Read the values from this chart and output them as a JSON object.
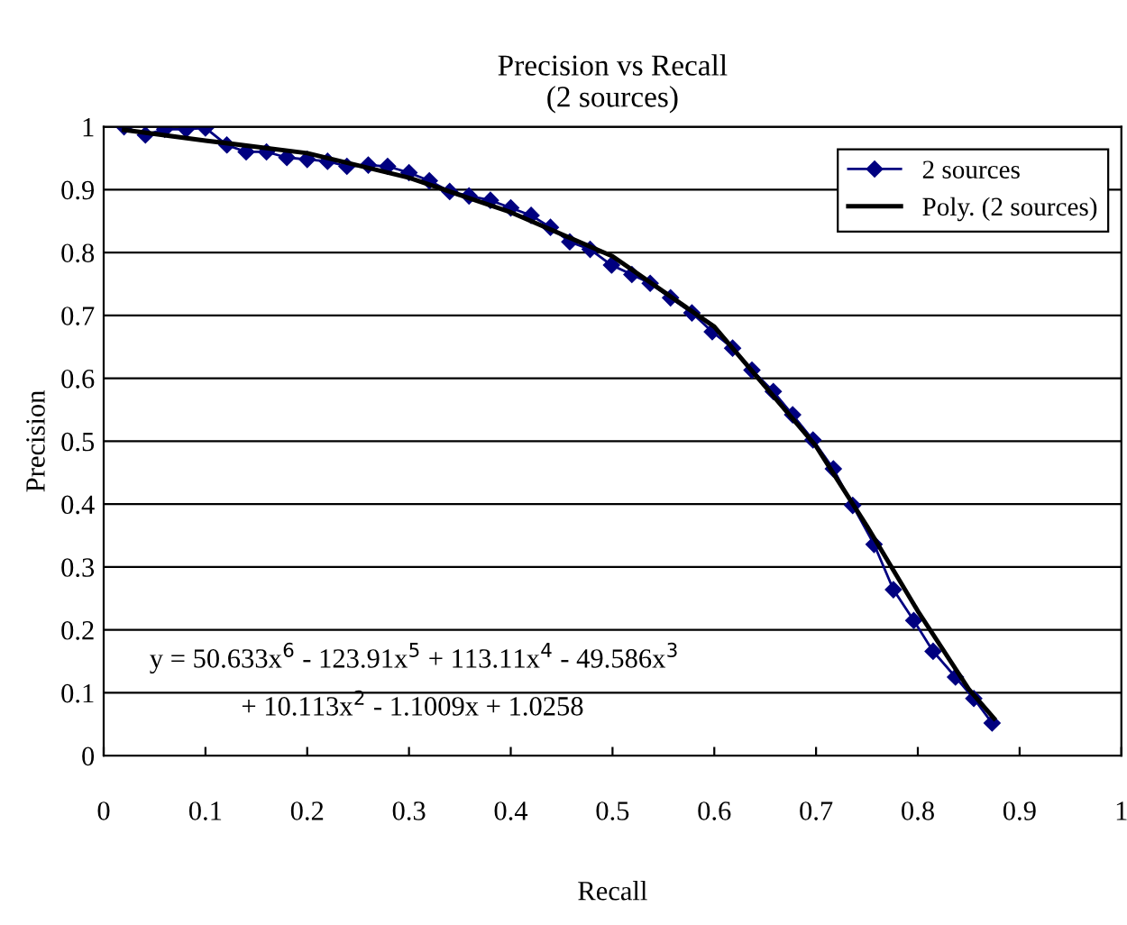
{
  "chart_data": {
    "type": "line",
    "title": "Precision vs Recall\n(2 sources)",
    "xlabel": "Recall",
    "ylabel": "Precision",
    "xlim": [
      0,
      1
    ],
    "ylim": [
      0,
      1
    ],
    "xticks": [
      0,
      0.1,
      0.2,
      0.3,
      0.4,
      0.5,
      0.6,
      0.7,
      0.8,
      0.9,
      1
    ],
    "yticks": [
      0,
      0.1,
      0.2,
      0.3,
      0.4,
      0.5,
      0.6,
      0.7,
      0.8,
      0.9,
      1
    ],
    "grid": "y",
    "legend": "top right",
    "series": [
      {
        "name": "2 sources",
        "color": "#000080",
        "marker": "diamond",
        "x": [
          0.02,
          0.041,
          0.06,
          0.081,
          0.1,
          0.121,
          0.14,
          0.16,
          0.18,
          0.2,
          0.22,
          0.239,
          0.26,
          0.279,
          0.3,
          0.32,
          0.34,
          0.359,
          0.38,
          0.4,
          0.42,
          0.439,
          0.458,
          0.478,
          0.499,
          0.519,
          0.537,
          0.557,
          0.578,
          0.598,
          0.618,
          0.637,
          0.658,
          0.677,
          0.697,
          0.717,
          0.736,
          0.757,
          0.776,
          0.796,
          0.815,
          0.837,
          0.855,
          0.873
        ],
        "values": [
          1.0,
          0.987,
          0.996,
          0.996,
          0.998,
          0.971,
          0.96,
          0.96,
          0.951,
          0.948,
          0.945,
          0.937,
          0.939,
          0.937,
          0.927,
          0.914,
          0.897,
          0.89,
          0.883,
          0.871,
          0.859,
          0.84,
          0.817,
          0.805,
          0.78,
          0.765,
          0.751,
          0.728,
          0.704,
          0.674,
          0.648,
          0.613,
          0.579,
          0.542,
          0.502,
          0.456,
          0.398,
          0.336,
          0.264,
          0.215,
          0.166,
          0.125,
          0.091,
          0.052
        ]
      },
      {
        "name": "Poly. (2 sources)",
        "color": "#000000",
        "marker": "none",
        "x": [
          0.02,
          0.1,
          0.2,
          0.3,
          0.4,
          0.5,
          0.6,
          0.7,
          0.75,
          0.8,
          0.85,
          0.875
        ],
        "values": [
          0.995,
          0.978,
          0.958,
          0.919,
          0.864,
          0.794,
          0.682,
          0.492,
          0.365,
          0.23,
          0.106,
          0.059
        ]
      }
    ],
    "annotations": [
      "y = 50.633x$^{6}$ - 123.91x$^{5}$ + 113.11x$^{4}$ - 49.586x$^{3}$",
      "+ 10.113x$^{2}$ - 1.1009x + 1.0258"
    ]
  }
}
